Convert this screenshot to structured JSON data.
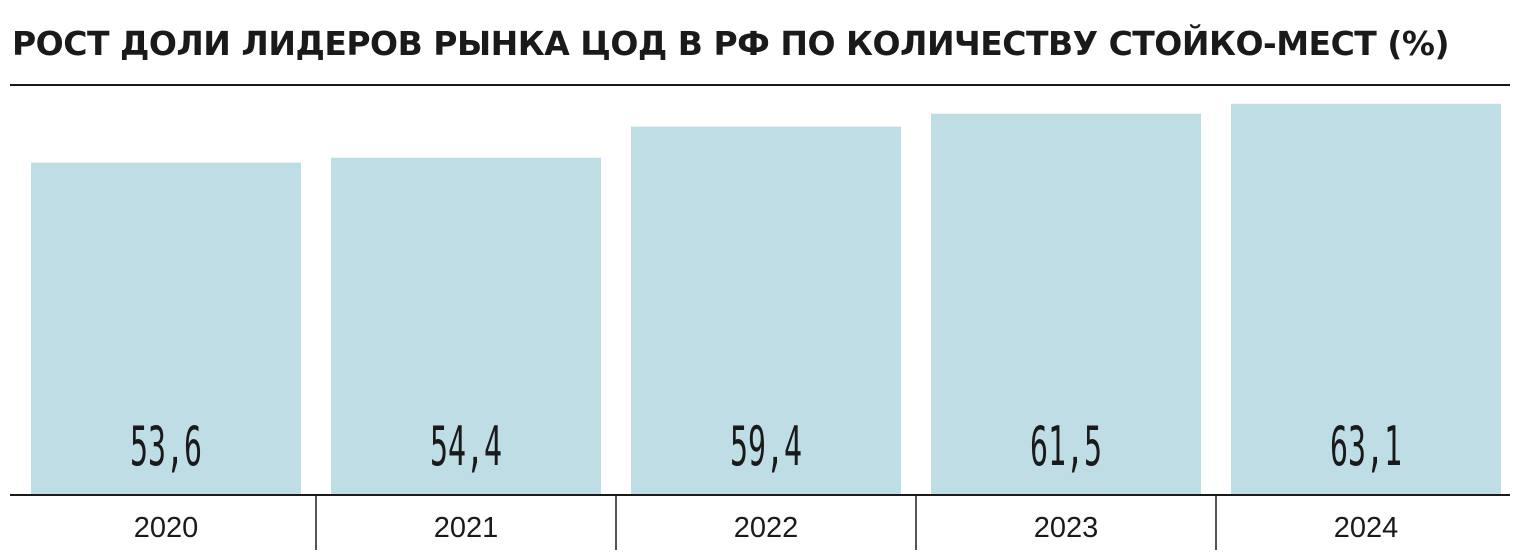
{
  "chart_data": {
    "type": "bar",
    "title": "РОСТ ДОЛИ ЛИДЕРОВ РЫНКА ЦОД В РФ ПО КОЛИЧЕСТВУ СТОЙКО-МЕСТ (%)",
    "categories": [
      "2020",
      "2021",
      "2022",
      "2023",
      "2024"
    ],
    "values": [
      53.6,
      54.4,
      59.4,
      61.5,
      63.1
    ],
    "value_labels": [
      "53,6",
      "54,4",
      "59,4",
      "61,5",
      "63,1"
    ],
    "xlabel": "",
    "ylabel": "",
    "ylim": [
      0,
      77
    ],
    "grid": false,
    "legend": "none",
    "colors": {
      "bar": "#bfdde5",
      "text": "#1a1a1a"
    }
  }
}
